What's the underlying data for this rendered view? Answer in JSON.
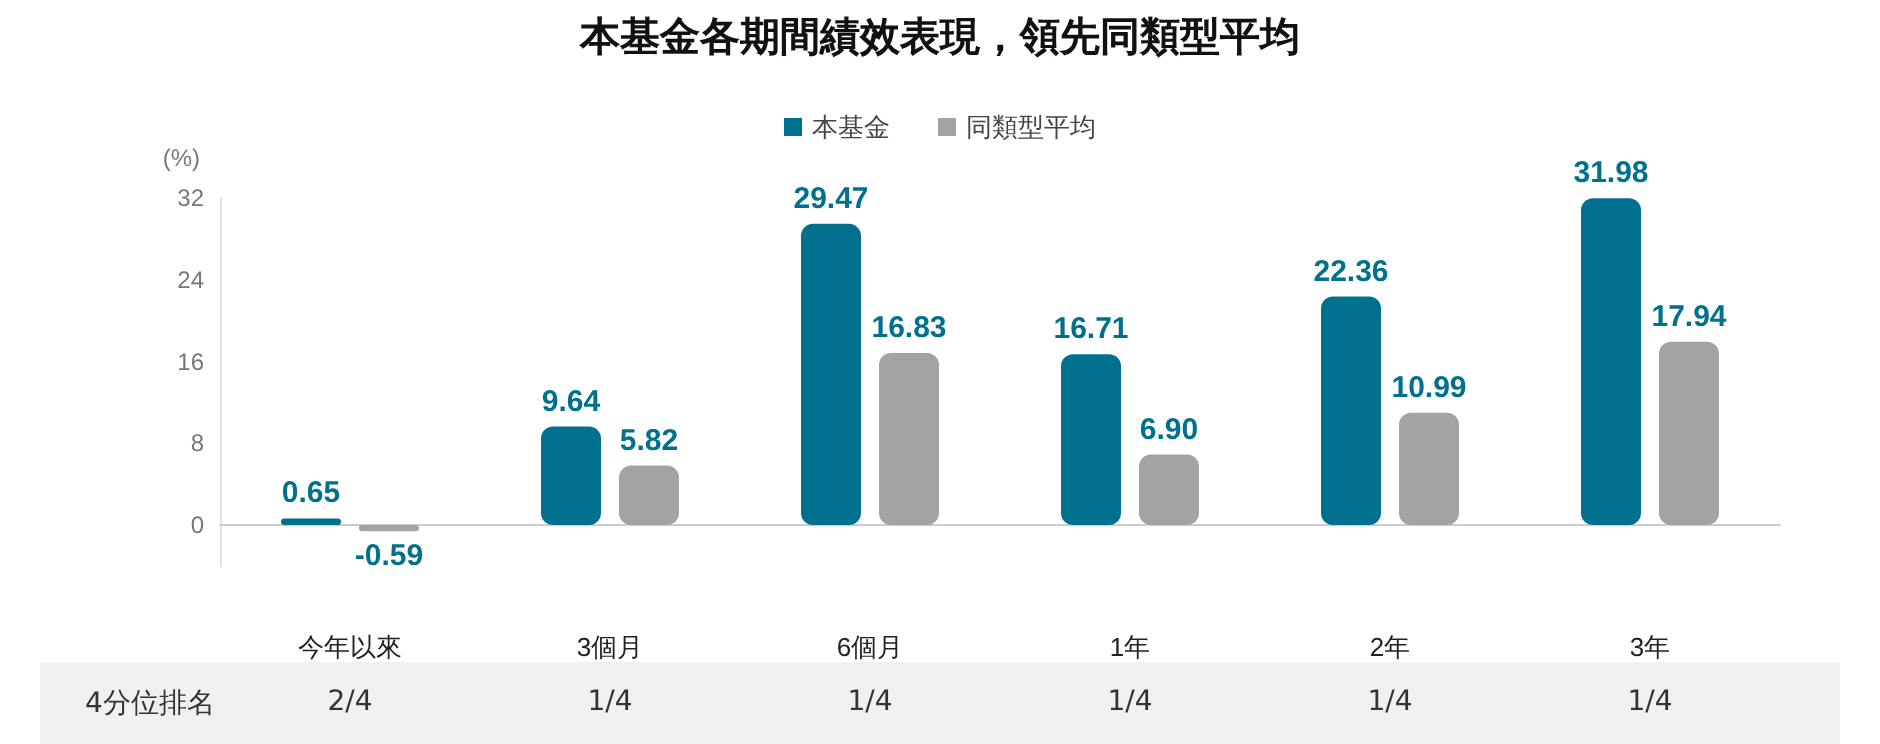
{
  "chart_data": {
    "type": "bar",
    "title": "本基金各期間績效表現，領先同類型平均",
    "ylabel": "(%)",
    "categories": [
      "今年以來",
      "3個月",
      "6個月",
      "1年",
      "2年",
      "3年"
    ],
    "series": [
      {
        "name": "本基金",
        "color": "#00708f",
        "values": [
          0.65,
          9.64,
          29.47,
          16.71,
          22.36,
          31.98
        ],
        "value_labels": [
          "0.65",
          "9.64",
          "29.47",
          "16.71",
          "22.36",
          "31.98"
        ]
      },
      {
        "name": "同類型平均",
        "color": "#a3a3a3",
        "values": [
          -0.59,
          5.82,
          16.83,
          6.9,
          10.99,
          17.94
        ],
        "value_labels": [
          "-0.59",
          "5.82",
          "16.83",
          "6.90",
          "10.99",
          "17.94"
        ]
      }
    ],
    "ylim": [
      -4,
      32
    ],
    "yticks": [
      0,
      8,
      16,
      24,
      32
    ],
    "legend": "top",
    "annotations": [
      "4分位排名",
      "2/4",
      "1/4",
      "1/4",
      "1/4",
      "1/4",
      "1/4"
    ]
  }
}
